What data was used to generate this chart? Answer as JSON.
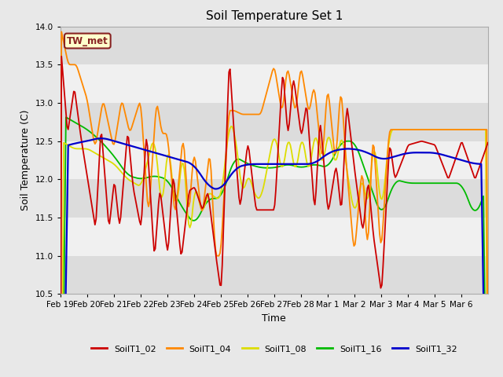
{
  "title": "Soil Temperature Set 1",
  "xlabel": "Time",
  "ylabel": "Soil Temperature (C)",
  "ylim": [
    10.5,
    14.0
  ],
  "yticks": [
    10.5,
    11.0,
    11.5,
    12.0,
    12.5,
    13.0,
    13.5,
    14.0
  ],
  "annotation": "TW_met",
  "fig_bg": "#e8e8e8",
  "plot_bg": "#f0f0f0",
  "band_colors": [
    "#dcdcdc",
    "#f0f0f0"
  ],
  "series_colors": {
    "SoilT1_02": "#cc0000",
    "SoilT1_04": "#ff8800",
    "SoilT1_08": "#dddd00",
    "SoilT1_16": "#00bb00",
    "SoilT1_32": "#0000cc"
  },
  "xtick_labels": [
    "Feb 19",
    "Feb 20",
    "Feb 21",
    "Feb 22",
    "Feb 23",
    "Feb 24",
    "Feb 25",
    "Feb 26",
    "Feb 27",
    "Feb 28",
    "Mar 1",
    "Mar 2",
    "Mar 3",
    "Mar 4",
    "Mar 5",
    "Mar 6"
  ],
  "legend_entries": [
    "SoilT1_02",
    "SoilT1_04",
    "SoilT1_08",
    "SoilT1_16",
    "SoilT1_32"
  ]
}
